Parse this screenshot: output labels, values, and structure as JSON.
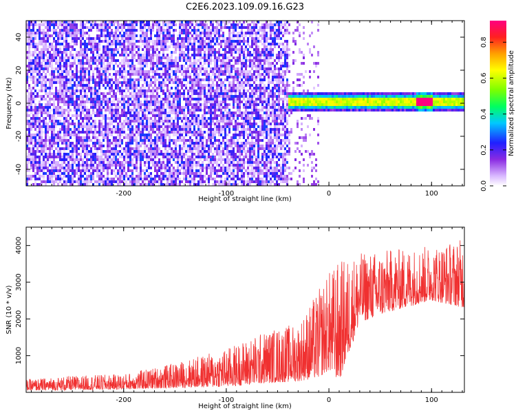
{
  "title": "C2E6.2023.109.09.16.G23",
  "chart_data": [
    {
      "type": "heatmap",
      "xlabel": "Height of straight line (km)",
      "ylabel": "Frequency (Hz)",
      "xlim": [
        -295,
        132
      ],
      "ylim": [
        -50,
        50
      ],
      "xticks": [
        -200,
        -100,
        0,
        100
      ],
      "yticks": [
        -40,
        -20,
        0,
        20,
        40
      ],
      "colorbar": {
        "label": "Normalized spectral amplitude",
        "range": [
          0.0,
          0.92
        ],
        "ticks": [
          0.0,
          0.2,
          0.4,
          0.6,
          0.8
        ]
      },
      "features": [
        {
          "x_range": [
            -295,
            -40
          ],
          "description_value": "broadband noise 0.1-0.3"
        },
        {
          "x_range": [
            -40,
            132
          ],
          "center_freq": 1.5,
          "peak_amplitude": 0.9
        }
      ]
    },
    {
      "type": "area",
      "xlabel": "Height of straight line (km)",
      "ylabel": "SNR (10 * v/v)",
      "xlim": [
        -295,
        132
      ],
      "ylim": [
        0,
        4500
      ],
      "xticks": [
        -200,
        -100,
        0,
        100
      ],
      "yticks": [
        1000,
        2000,
        3000,
        4000
      ],
      "color": "#f03030",
      "envelope": {
        "x": [
          -295,
          -250,
          -200,
          -150,
          -100,
          -60,
          -30,
          -10,
          0,
          10,
          30,
          60,
          100,
          132
        ],
        "lower": [
          50,
          60,
          80,
          120,
          150,
          250,
          300,
          400,
          600,
          300,
          1900,
          2200,
          2500,
          2300
        ],
        "upper": [
          350,
          450,
          500,
          800,
          1200,
          1700,
          1900,
          2800,
          3300,
          3600,
          3800,
          3900,
          4000,
          4200
        ]
      }
    }
  ]
}
